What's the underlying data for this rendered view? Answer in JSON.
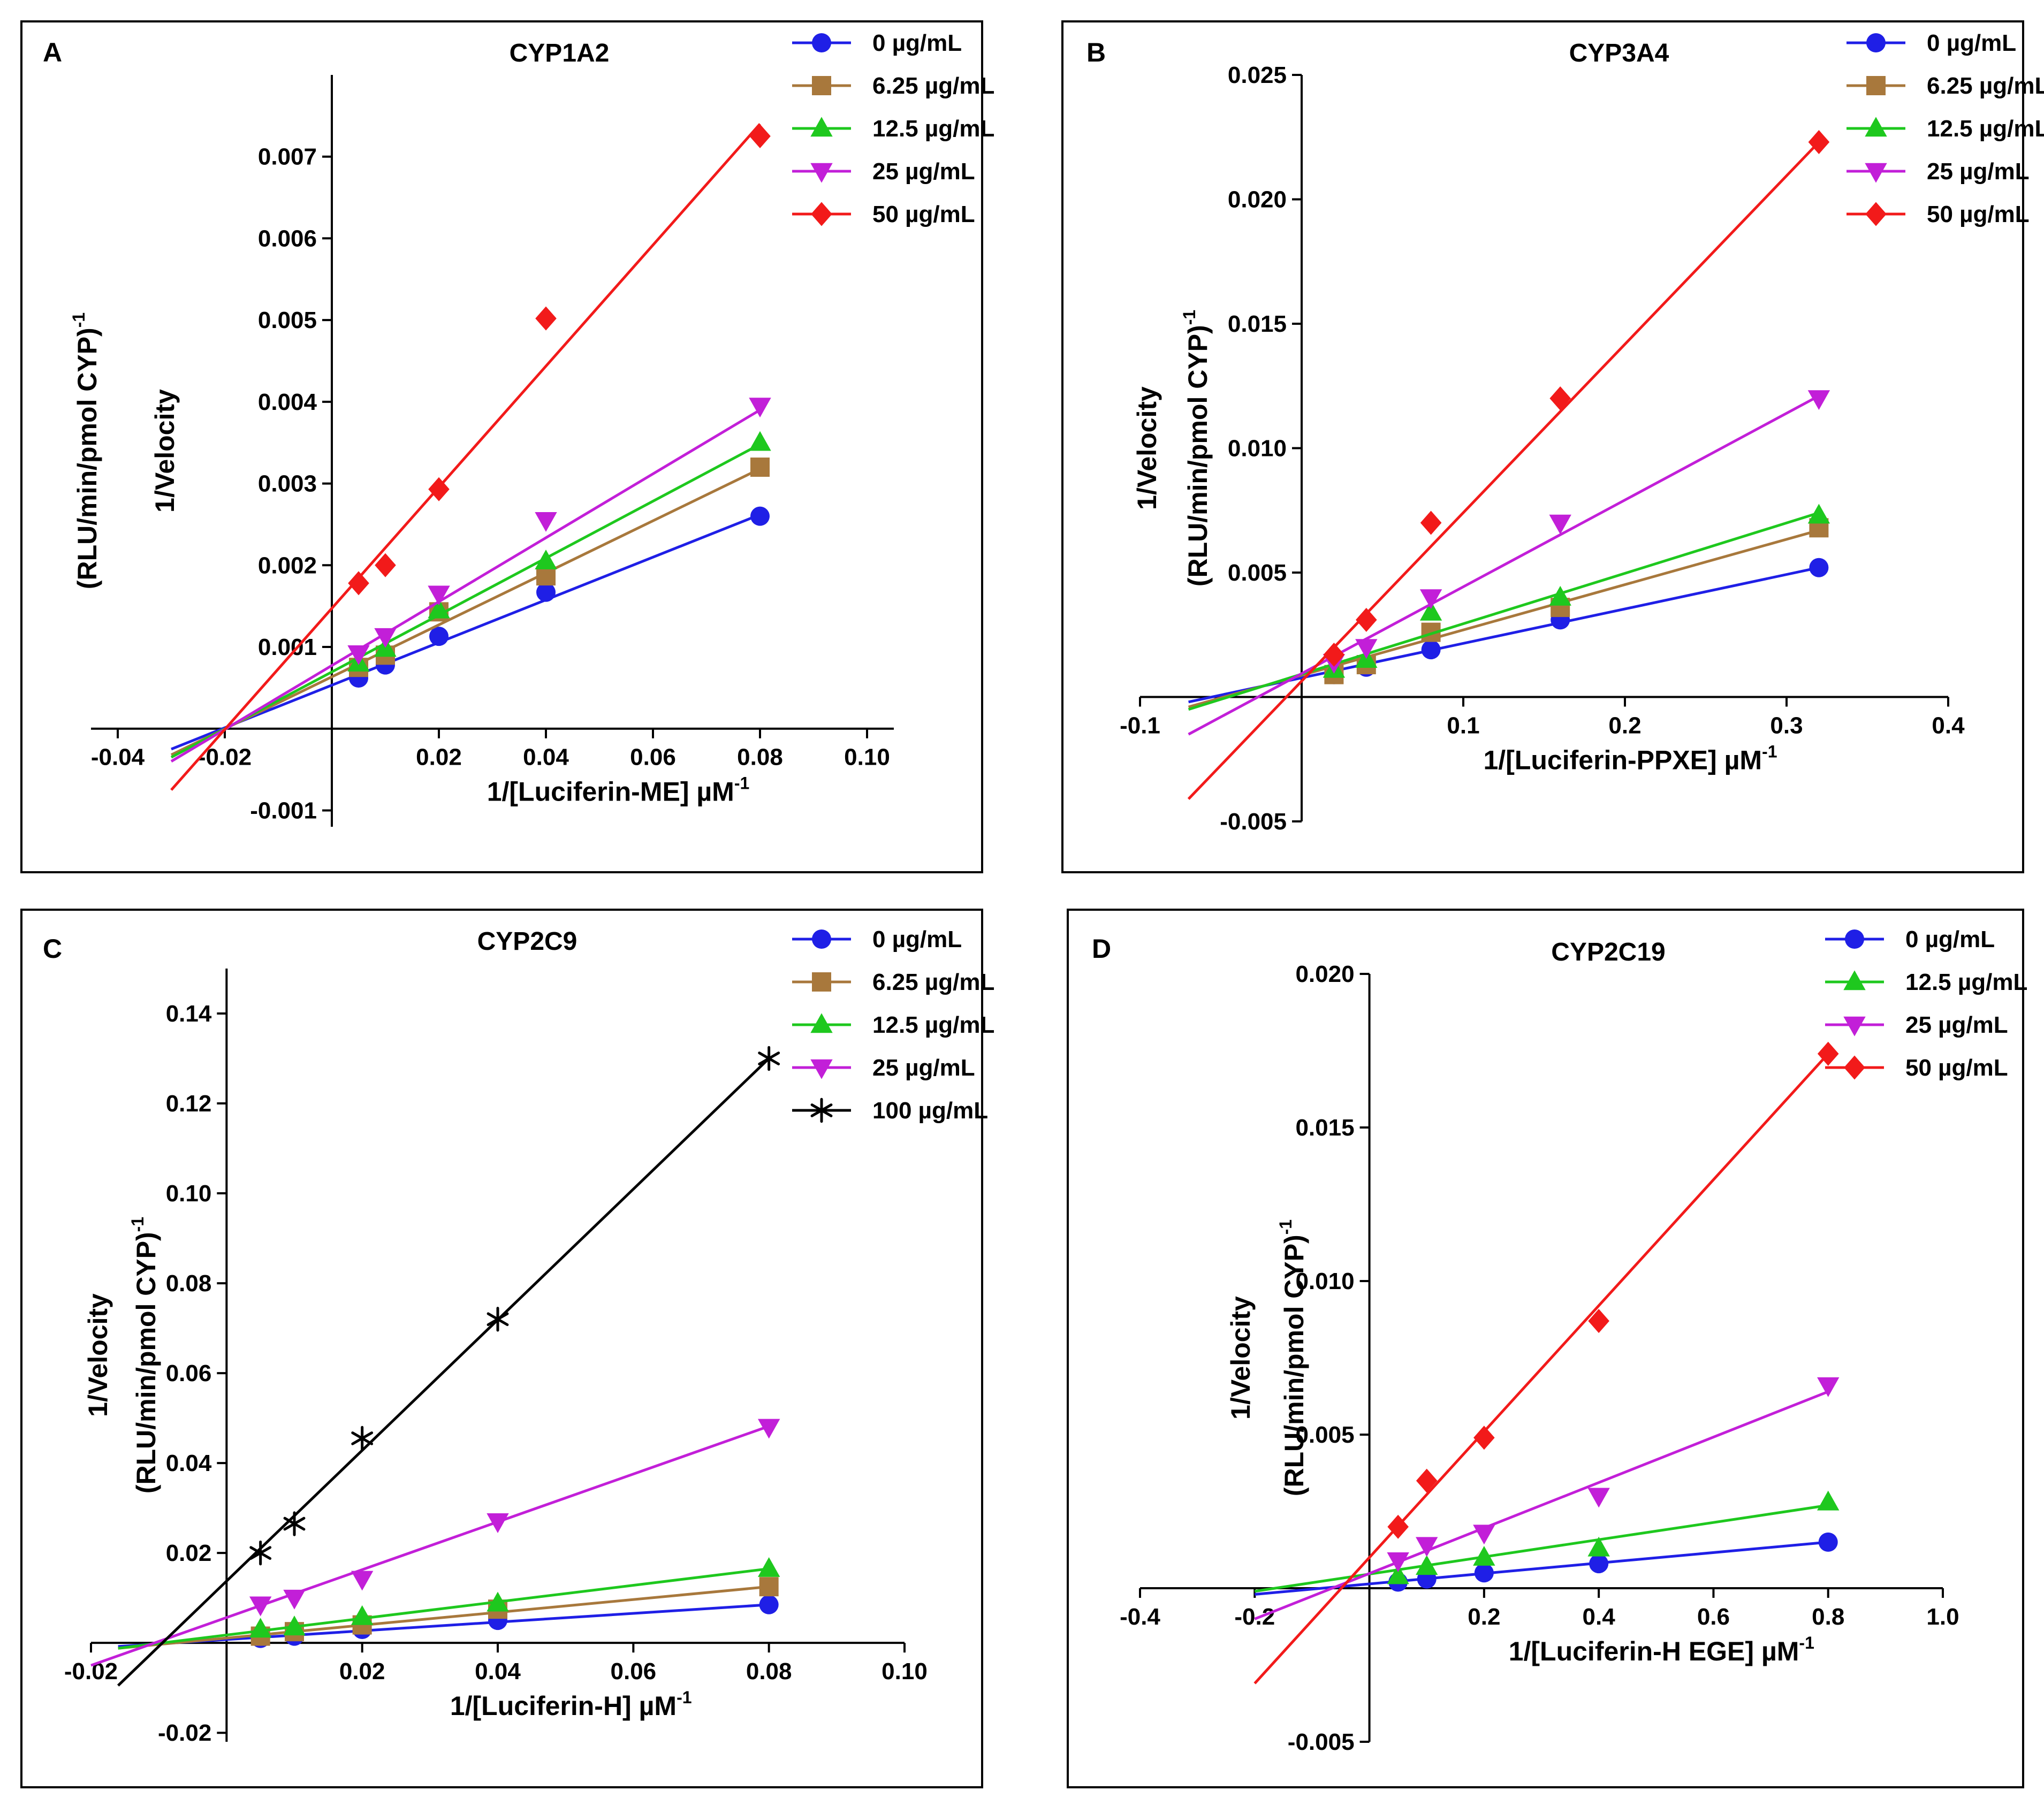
{
  "figure": {
    "panels": [
      "A",
      "B",
      "C",
      "D"
    ]
  },
  "colors": {
    "blue": "#1f1fe6",
    "brown": "#a8783c",
    "green": "#1ec81e",
    "magenta": "#c21fd8",
    "red": "#f21a1a",
    "black": "#000000"
  },
  "chart_data": [
    {
      "panel": "A",
      "type": "scatter",
      "title": "CYP1A2",
      "xlabel_main": "1/[Luciferin-ME] µM",
      "xlabel_sup": "-1",
      "ylabel_line1": "1/Velocity",
      "ylabel_line2": "(RLU/min/pmol CYP)",
      "ylabel_sup": "-1",
      "xlim": [
        -0.045,
        0.105
      ],
      "ylim": [
        -0.0012,
        0.008
      ],
      "xticks": [
        -0.04,
        -0.02,
        0.02,
        0.04,
        0.06,
        0.08,
        0.1
      ],
      "xtick_labels": [
        "-0.04",
        "-0.02",
        "0.02",
        "0.04",
        "0.06",
        "0.08",
        "0.10"
      ],
      "yticks": [
        -0.001,
        0.001,
        0.002,
        0.003,
        0.004,
        0.005,
        0.006,
        0.007
      ],
      "ytick_labels": [
        "-0.001",
        "0.001",
        "0.002",
        "0.003",
        "0.004",
        "0.005",
        "0.006",
        "0.007"
      ],
      "series": [
        {
          "name": "0 µg/mL",
          "color": "blue",
          "marker": "circle",
          "x": [
            0.005,
            0.01,
            0.02,
            0.04,
            0.08
          ],
          "y": [
            0.00062,
            0.00078,
            0.00113,
            0.00167,
            0.0026
          ],
          "line": {
            "x0": -0.03,
            "y0": -0.00025,
            "x1": 0.08,
            "y1": 0.00262
          }
        },
        {
          "name": "6.25 µg/mL",
          "color": "brown",
          "marker": "square",
          "x": [
            0.005,
            0.01,
            0.02,
            0.04,
            0.08
          ],
          "y": [
            0.00075,
            0.0009,
            0.00143,
            0.00187,
            0.0032
          ],
          "line": {
            "x0": -0.03,
            "y0": -0.00032,
            "x1": 0.08,
            "y1": 0.00318
          }
        },
        {
          "name": "12.5 µg/mL",
          "color": "green",
          "marker": "triangle-up",
          "x": [
            0.005,
            0.01,
            0.02,
            0.04,
            0.08
          ],
          "y": [
            0.0008,
            0.00098,
            0.00145,
            0.00205,
            0.0035
          ],
          "line": {
            "x0": -0.03,
            "y0": -0.00035,
            "x1": 0.08,
            "y1": 0.00348
          }
        },
        {
          "name": "25 µg/mL",
          "color": "magenta",
          "marker": "triangle-down",
          "x": [
            0.005,
            0.01,
            0.02,
            0.04,
            0.08
          ],
          "y": [
            0.00092,
            0.00113,
            0.00165,
            0.00255,
            0.00395
          ],
          "line": {
            "x0": -0.03,
            "y0": -0.0004,
            "x1": 0.08,
            "y1": 0.0039
          }
        },
        {
          "name": "50 µg/mL",
          "color": "red",
          "marker": "diamond",
          "x": [
            0.005,
            0.01,
            0.02,
            0.04,
            0.08
          ],
          "y": [
            0.00178,
            0.002,
            0.00293,
            0.00502,
            0.00725
          ],
          "line": {
            "x0": -0.03,
            "y0": -0.00075,
            "x1": 0.08,
            "y1": 0.0074
          }
        }
      ]
    },
    {
      "panel": "B",
      "type": "scatter",
      "title": "CYP3A4",
      "xlabel_main": "1/[Luciferin-PPXE] µM",
      "xlabel_sup": "-1",
      "ylabel_line1": "1/Velocity",
      "ylabel_line2": "(RLU/min/pmol CYP)",
      "ylabel_sup": "-1",
      "xlim": [
        -0.1,
        0.4
      ],
      "ylim": [
        -0.005,
        0.025
      ],
      "xticks": [
        -0.1,
        0.1,
        0.2,
        0.3,
        0.4
      ],
      "xtick_labels": [
        "-0.1",
        "0.1",
        "0.2",
        "0.3",
        "0.4"
      ],
      "yticks": [
        -0.005,
        0.005,
        0.01,
        0.015,
        0.02,
        0.025
      ],
      "ytick_labels": [
        "-0.005",
        "0.005",
        "0.010",
        "0.015",
        "0.020",
        "0.025"
      ],
      "series": [
        {
          "name": "0 µg/mL",
          "color": "blue",
          "marker": "circle",
          "x": [
            0.02,
            0.04,
            0.08,
            0.16,
            0.32
          ],
          "y": [
            0.0009,
            0.0012,
            0.0019,
            0.0031,
            0.0052
          ],
          "line": {
            "x0": -0.07,
            "y0": -0.0002,
            "x1": 0.32,
            "y1": 0.0052
          }
        },
        {
          "name": "6.25 µg/mL",
          "color": "brown",
          "marker": "square",
          "x": [
            0.02,
            0.04,
            0.08,
            0.16,
            0.32
          ],
          "y": [
            0.0009,
            0.0013,
            0.0026,
            0.0036,
            0.0068
          ],
          "line": {
            "x0": -0.07,
            "y0": -0.0004,
            "x1": 0.32,
            "y1": 0.0067
          }
        },
        {
          "name": "12.5 µg/mL",
          "color": "green",
          "marker": "triangle-up",
          "x": [
            0.02,
            0.04,
            0.08,
            0.16,
            0.32
          ],
          "y": [
            0.0011,
            0.0015,
            0.0034,
            0.004,
            0.0073
          ],
          "line": {
            "x0": -0.07,
            "y0": -0.0005,
            "x1": 0.32,
            "y1": 0.0074
          }
        },
        {
          "name": "25 µg/mL",
          "color": "magenta",
          "marker": "triangle-down",
          "x": [
            0.02,
            0.04,
            0.08,
            0.16,
            0.32
          ],
          "y": [
            0.0014,
            0.002,
            0.004,
            0.007,
            0.012
          ],
          "line": {
            "x0": -0.07,
            "y0": -0.0015,
            "x1": 0.32,
            "y1": 0.0121
          }
        },
        {
          "name": "50 µg/mL",
          "color": "red",
          "marker": "diamond",
          "x": [
            0.02,
            0.04,
            0.08,
            0.16,
            0.32
          ],
          "y": [
            0.0017,
            0.0031,
            0.007,
            0.012,
            0.0223
          ],
          "line": {
            "x0": -0.07,
            "y0": -0.0041,
            "x1": 0.32,
            "y1": 0.0223
          }
        }
      ]
    },
    {
      "panel": "C",
      "type": "scatter",
      "title": "CYP2C9",
      "xlabel_main": "1/[Luciferin-H] µM",
      "xlabel_sup": "-1",
      "ylabel_line1": "1/Velocity",
      "ylabel_line2": "(RLU/min/pmol CYP)",
      "ylabel_sup": "-1",
      "xlim": [
        -0.02,
        0.1
      ],
      "ylim": [
        -0.022,
        0.15
      ],
      "xticks": [
        -0.02,
        0.02,
        0.04,
        0.06,
        0.08,
        0.1
      ],
      "xtick_labels": [
        "-0.02",
        "0.02",
        "0.04",
        "0.06",
        "0.08",
        "0.10"
      ],
      "yticks": [
        -0.02,
        0.02,
        0.04,
        0.06,
        0.08,
        0.1,
        0.12,
        0.14
      ],
      "ytick_labels": [
        "-0.02",
        "0.02",
        "0.04",
        "0.06",
        "0.08",
        "0.10",
        "0.12",
        "0.14"
      ],
      "series": [
        {
          "name": "0 µg/mL",
          "color": "blue",
          "marker": "circle",
          "x": [
            0.005,
            0.01,
            0.02,
            0.04,
            0.08
          ],
          "y": [
            0.001,
            0.0015,
            0.003,
            0.005,
            0.0085
          ],
          "line": {
            "x0": -0.016,
            "y0": -0.0008,
            "x1": 0.08,
            "y1": 0.0085
          }
        },
        {
          "name": "6.25 µg/mL",
          "color": "brown",
          "marker": "square",
          "x": [
            0.005,
            0.01,
            0.02,
            0.04,
            0.08
          ],
          "y": [
            0.0015,
            0.0025,
            0.004,
            0.0075,
            0.0125
          ],
          "line": {
            "x0": -0.016,
            "y0": -0.0012,
            "x1": 0.08,
            "y1": 0.0125
          }
        },
        {
          "name": "12.5 µg/mL",
          "color": "green",
          "marker": "triangle-up",
          "x": [
            0.005,
            0.01,
            0.02,
            0.04,
            0.08
          ],
          "y": [
            0.003,
            0.0035,
            0.0058,
            0.0088,
            0.0165
          ],
          "line": {
            "x0": -0.016,
            "y0": -0.0012,
            "x1": 0.08,
            "y1": 0.0165
          }
        },
        {
          "name": "25 µg/mL",
          "color": "magenta",
          "marker": "triangle-down",
          "x": [
            0.005,
            0.01,
            0.02,
            0.04,
            0.08
          ],
          "y": [
            0.0085,
            0.01,
            0.0142,
            0.027,
            0.048
          ],
          "line": {
            "x0": -0.02,
            "y0": -0.005,
            "x1": 0.08,
            "y1": 0.0482
          }
        },
        {
          "name": "100 µg/mL",
          "color": "black",
          "marker": "asterisk",
          "x": [
            0.005,
            0.01,
            0.02,
            0.04,
            0.08
          ],
          "y": [
            0.02,
            0.0265,
            0.0455,
            0.072,
            0.13
          ],
          "line": {
            "x0": -0.016,
            "y0": -0.0095,
            "x1": 0.08,
            "y1": 0.13
          }
        }
      ]
    },
    {
      "panel": "D",
      "type": "scatter",
      "title": "CYP2C19",
      "xlabel_main": "1/[Luciferin-H EGE] µM",
      "xlabel_sup": "-1",
      "ylabel_line1": "1/Velocity",
      "ylabel_line2": "(RLU/min/pmol CYP)",
      "ylabel_sup": "-1",
      "xlim": [
        -0.4,
        1.0
      ],
      "ylim": [
        -0.005,
        0.02
      ],
      "xticks": [
        -0.4,
        -0.2,
        0.2,
        0.4,
        0.6,
        0.8,
        1.0
      ],
      "xtick_labels": [
        "-0.4",
        "-0.2",
        "0.2",
        "0.4",
        "0.6",
        "0.8",
        "1.0"
      ],
      "yticks": [
        -0.005,
        0.005,
        0.01,
        0.015,
        0.02
      ],
      "ytick_labels": [
        "-0.005",
        "0.005",
        "0.010",
        "0.015",
        "0.020"
      ],
      "series": [
        {
          "name": "0 µg/mL",
          "color": "blue",
          "marker": "circle",
          "x": [
            0.05,
            0.1,
            0.2,
            0.4,
            0.8
          ],
          "y": [
            0.0002,
            0.0003,
            0.0005,
            0.0008,
            0.0015
          ],
          "line": {
            "x0": -0.2,
            "y0": -0.0002,
            "x1": 0.8,
            "y1": 0.0015
          }
        },
        {
          "name": "12.5 µg/mL",
          "color": "green",
          "marker": "triangle-up",
          "x": [
            0.05,
            0.1,
            0.2,
            0.4,
            0.8
          ],
          "y": [
            0.0004,
            0.0007,
            0.001,
            0.0013,
            0.0028
          ],
          "line": {
            "x0": -0.2,
            "y0": -0.0001,
            "x1": 0.8,
            "y1": 0.0027
          }
        },
        {
          "name": "25 µg/mL",
          "color": "magenta",
          "marker": "triangle-down",
          "x": [
            0.05,
            0.1,
            0.2,
            0.4,
            0.8
          ],
          "y": [
            0.0009,
            0.0014,
            0.0018,
            0.003,
            0.0066
          ],
          "line": {
            "x0": -0.2,
            "y0": -0.001,
            "x1": 0.8,
            "y1": 0.0064
          }
        },
        {
          "name": "50 µg/mL",
          "color": "red",
          "marker": "diamond",
          "x": [
            0.05,
            0.1,
            0.2,
            0.4,
            0.8
          ],
          "y": [
            0.002,
            0.0035,
            0.0049,
            0.0087,
            0.0174
          ],
          "line": {
            "x0": -0.2,
            "y0": -0.0031,
            "x1": 0.8,
            "y1": 0.0174
          }
        }
      ]
    }
  ]
}
